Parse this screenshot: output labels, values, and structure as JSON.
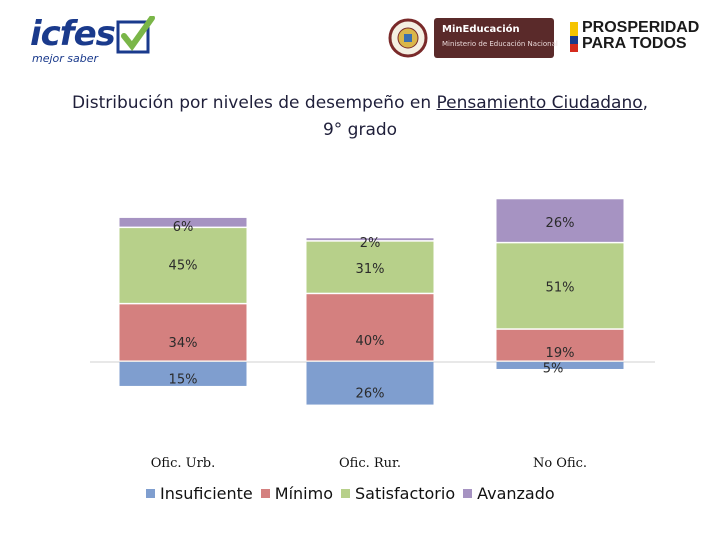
{
  "header": {
    "icfes_logo": {
      "name": "icfes",
      "tagline": "mejor saber",
      "icon": "check-mark-icon"
    },
    "ministry_logo": {
      "icon": "colombia-seal-icon",
      "name": "MinEducación",
      "subtitle": "Ministerio de Educación Nacional"
    },
    "prosperity_logo": {
      "line1": "PROSPERIDAD",
      "line2": "PARA TODOS",
      "colors": [
        "#f5c400",
        "#1a3a8c",
        "#d52b1e"
      ]
    }
  },
  "title": {
    "part1": "Distribución por niveles de desempeño en ",
    "underlined1": "Pensamiento Ciudadano",
    "part2": ", 9° grado"
  },
  "chart_data": {
    "type": "bar",
    "stacked": true,
    "categories": [
      "Ofic. Urb.",
      "Ofic. Rur.",
      "No Ofic."
    ],
    "series": [
      {
        "name": "Insuficiente",
        "color": "#7f9ecf",
        "values": [
          15,
          26,
          5
        ]
      },
      {
        "name": "Mínimo",
        "color": "#d4807f",
        "values": [
          34,
          40,
          19
        ]
      },
      {
        "name": "Satisfactorio",
        "color": "#b7d08a",
        "values": [
          45,
          31,
          51
        ]
      },
      {
        "name": "Avanzado",
        "color": "#a693c2",
        "values": [
          6,
          2,
          26
        ]
      }
    ],
    "value_labels": [
      [
        "15%",
        "34%",
        "45%",
        "6%"
      ],
      [
        "26%",
        "40%",
        "31%",
        "2%"
      ],
      [
        "5%",
        "19%",
        "51%",
        "26%"
      ]
    ],
    "baselines": [
      -15,
      -26,
      -5
    ],
    "legend_position": "bottom",
    "grid": false
  }
}
